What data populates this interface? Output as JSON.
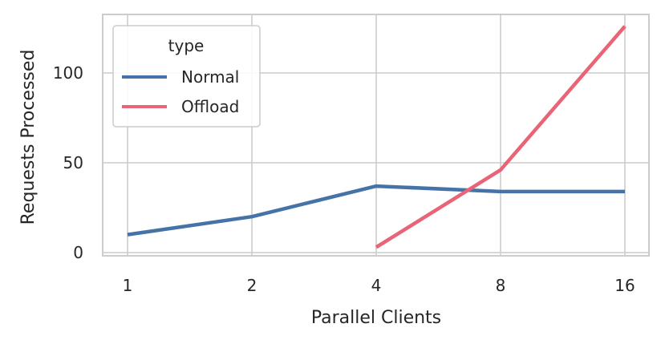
{
  "chart_data": {
    "type": "line",
    "title": "",
    "xlabel": "Parallel Clients",
    "ylabel": "Requests Processed",
    "categories": [
      "1",
      "2",
      "4",
      "8",
      "16"
    ],
    "x_scale": "log2",
    "ylim": [
      -2,
      127
    ],
    "yticks": [
      0,
      50,
      100
    ],
    "grid": true,
    "legend": {
      "title": "type",
      "placement": "top-left"
    },
    "series": [
      {
        "name": "Normal",
        "color": "#4573a8",
        "values": [
          10,
          20,
          37,
          34,
          34
        ]
      },
      {
        "name": "Offload",
        "color": "#ea6477",
        "values": [
          null,
          null,
          3,
          46,
          126
        ]
      }
    ]
  }
}
